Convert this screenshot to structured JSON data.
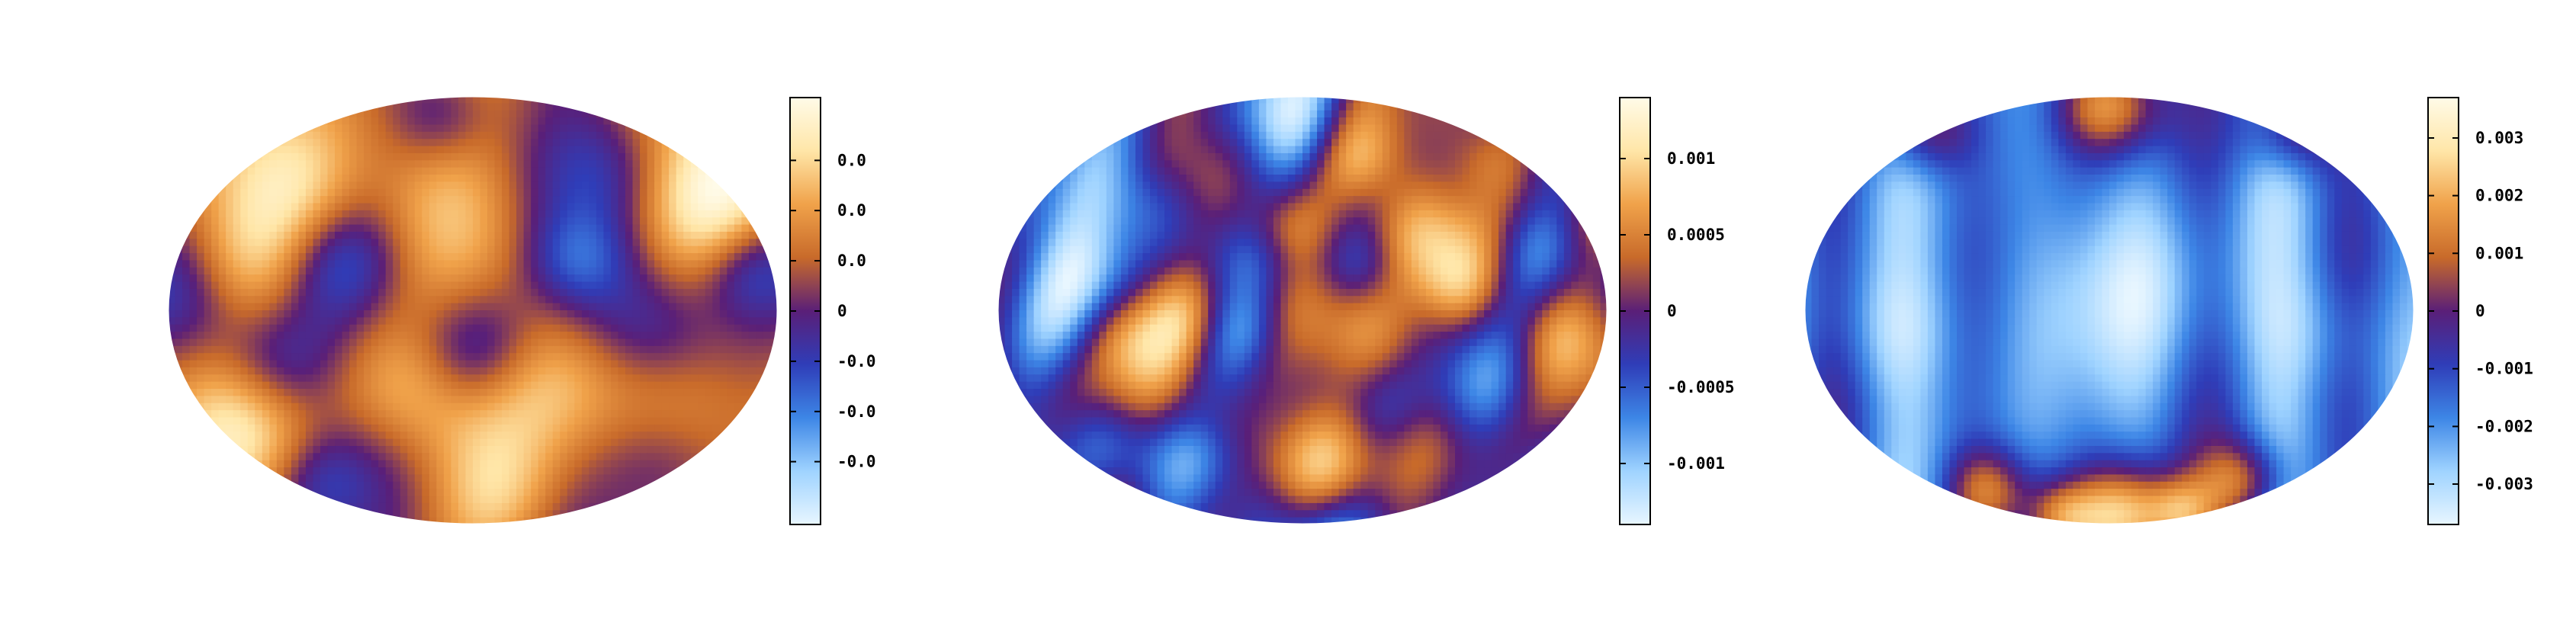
{
  "chart_data": [
    {
      "type": "heatmap",
      "projection": "mollweide",
      "title": "",
      "colormap": [
        "#e8f6ff",
        "#9fd3ff",
        "#3d86e6",
        "#2f3db8",
        "#5a1f78",
        "#c86a2a",
        "#f0a24a",
        "#ffe6a8",
        "#fffbe8"
      ],
      "colorbar": {
        "range": [
          -0.0085,
          0.0085
        ],
        "ticks": [
          {
            "value": 0.006,
            "label": "0.0"
          },
          {
            "value": 0.004,
            "label": "0.0"
          },
          {
            "value": 0.002,
            "label": "0.0"
          },
          {
            "value": 0,
            "label": "0"
          },
          {
            "value": -0.002,
            "label": "-0.0"
          },
          {
            "value": -0.004,
            "label": "-0.0"
          },
          {
            "value": -0.006,
            "label": "-0.0"
          }
        ]
      },
      "field": {
        "bias": 0.25,
        "blobs": [
          [
            0.5,
            0.35,
            0.55,
            0.1
          ],
          [
            0.35,
            0.8,
            -0.45,
            0.09
          ],
          [
            0.28,
            0.38,
            -0.5,
            0.07
          ],
          [
            0.72,
            0.18,
            -0.55,
            0.08
          ],
          [
            0.04,
            0.45,
            -0.5,
            0.08
          ],
          [
            0.17,
            0.62,
            -0.55,
            0.07
          ],
          [
            0.5,
            0.6,
            -0.6,
            0.07
          ],
          [
            0.82,
            0.55,
            -0.5,
            0.08
          ],
          [
            0.67,
            0.38,
            -0.5,
            0.06
          ],
          [
            0.88,
            0.25,
            0.7,
            0.1
          ],
          [
            0.4,
            0.7,
            0.6,
            0.09
          ],
          [
            0.2,
            0.25,
            0.5,
            0.09
          ],
          [
            0.65,
            0.68,
            0.45,
            0.09
          ],
          [
            0.95,
            0.4,
            -0.55,
            0.06
          ],
          [
            0.45,
            0.05,
            -0.5,
            0.06
          ],
          [
            0.25,
            0.9,
            -0.4,
            0.06
          ],
          [
            0.55,
            0.95,
            0.45,
            0.08
          ],
          [
            0.8,
            0.85,
            -0.35,
            0.07
          ],
          [
            0.15,
            0.8,
            0.4,
            0.08
          ],
          [
            0.1,
            0.4,
            0.4,
            0.07
          ]
        ],
        "waves": [
          [
            0.22,
            12,
            0,
            0.2,
            5,
            0.5
          ],
          [
            0.15,
            0,
            9,
            1.1,
            0,
            0.3
          ],
          [
            0.12,
            18,
            6,
            2.3,
            8,
            1.2
          ]
        ]
      }
    },
    {
      "type": "heatmap",
      "projection": "mollweide",
      "title": "",
      "colormap": [
        "#e8f6ff",
        "#9fd3ff",
        "#3d86e6",
        "#2f3db8",
        "#5a1f78",
        "#c86a2a",
        "#f0a24a",
        "#ffe6a8",
        "#fffbe8"
      ],
      "colorbar": {
        "range": [
          -0.0014,
          0.0014
        ],
        "ticks": [
          {
            "value": 0.001,
            "label": "0.001"
          },
          {
            "value": 0.0005,
            "label": "0.0005"
          },
          {
            "value": 0,
            "label": "0"
          },
          {
            "value": -0.0005,
            "label": "-0.0005"
          },
          {
            "value": -0.001,
            "label": "-0.001"
          }
        ]
      },
      "field": {
        "bias": 0.0,
        "blobs": [
          [
            0.5,
            0.08,
            -0.7,
            0.07
          ],
          [
            0.1,
            0.35,
            -0.75,
            0.1
          ],
          [
            0.25,
            0.25,
            -0.5,
            0.06
          ],
          [
            0.8,
            0.7,
            -0.6,
            0.07
          ],
          [
            0.88,
            0.35,
            -0.5,
            0.06
          ],
          [
            0.4,
            0.55,
            -0.45,
            0.05
          ],
          [
            0.45,
            0.98,
            -0.7,
            0.08
          ],
          [
            0.18,
            0.8,
            -0.5,
            0.06
          ],
          [
            0.6,
            0.4,
            -0.4,
            0.05
          ],
          [
            0.7,
            0.3,
            0.7,
            0.07
          ],
          [
            0.55,
            0.88,
            0.6,
            0.07
          ],
          [
            0.3,
            0.5,
            0.5,
            0.06
          ],
          [
            0.47,
            0.3,
            0.5,
            0.05
          ],
          [
            0.65,
            0.6,
            0.5,
            0.06
          ],
          [
            0.92,
            0.55,
            0.5,
            0.06
          ],
          [
            0.35,
            0.75,
            0.4,
            0.05
          ],
          [
            0.2,
            0.55,
            0.35,
            0.05
          ],
          [
            0.6,
            0.15,
            0.4,
            0.05
          ],
          [
            0.8,
            0.15,
            0.4,
            0.05
          ],
          [
            0.75,
            0.45,
            0.35,
            0.05
          ]
        ],
        "waves": [
          [
            0.3,
            22,
            4,
            0.5,
            3,
            1.0
          ],
          [
            0.22,
            8,
            16,
            1.9,
            0,
            0.6
          ],
          [
            0.15,
            30,
            10,
            2.7,
            11,
            0.2
          ]
        ]
      }
    },
    {
      "type": "heatmap",
      "projection": "mollweide",
      "title": "",
      "colormap": [
        "#e8f6ff",
        "#9fd3ff",
        "#3d86e6",
        "#2f3db8",
        "#5a1f78",
        "#c86a2a",
        "#f0a24a",
        "#ffe6a8",
        "#fffbe8"
      ],
      "colorbar": {
        "range": [
          -0.0037,
          0.0037
        ],
        "ticks": [
          {
            "value": 0.003,
            "label": "0.003"
          },
          {
            "value": 0.002,
            "label": "0.002"
          },
          {
            "value": 0.001,
            "label": "0.001"
          },
          {
            "value": 0,
            "label": "0"
          },
          {
            "value": -0.001,
            "label": "-0.001"
          },
          {
            "value": -0.002,
            "label": "-0.002"
          },
          {
            "value": -0.003,
            "label": "-0.003"
          }
        ]
      },
      "field": {
        "bias": -0.35,
        "blobs": [
          [
            0.5,
            0.02,
            0.7,
            0.06
          ],
          [
            0.2,
            0.08,
            0.45,
            0.05
          ],
          [
            0.8,
            0.08,
            0.45,
            0.05
          ],
          [
            0.52,
            0.98,
            0.85,
            0.06
          ],
          [
            0.3,
            0.92,
            0.55,
            0.05
          ],
          [
            0.72,
            0.9,
            0.55,
            0.05
          ],
          [
            0.42,
            0.98,
            0.45,
            0.04
          ],
          [
            0.62,
            0.97,
            0.45,
            0.04
          ],
          [
            0.5,
            0.45,
            -0.25,
            0.12
          ],
          [
            0.15,
            0.55,
            -0.2,
            0.08
          ],
          [
            0.85,
            0.55,
            -0.2,
            0.08
          ]
        ],
        "waves": [
          [
            0.22,
            26,
            0,
            0.3,
            4,
            0.1
          ],
          [
            0.1,
            10,
            8,
            1.4,
            0,
            0.9
          ]
        ]
      }
    }
  ]
}
